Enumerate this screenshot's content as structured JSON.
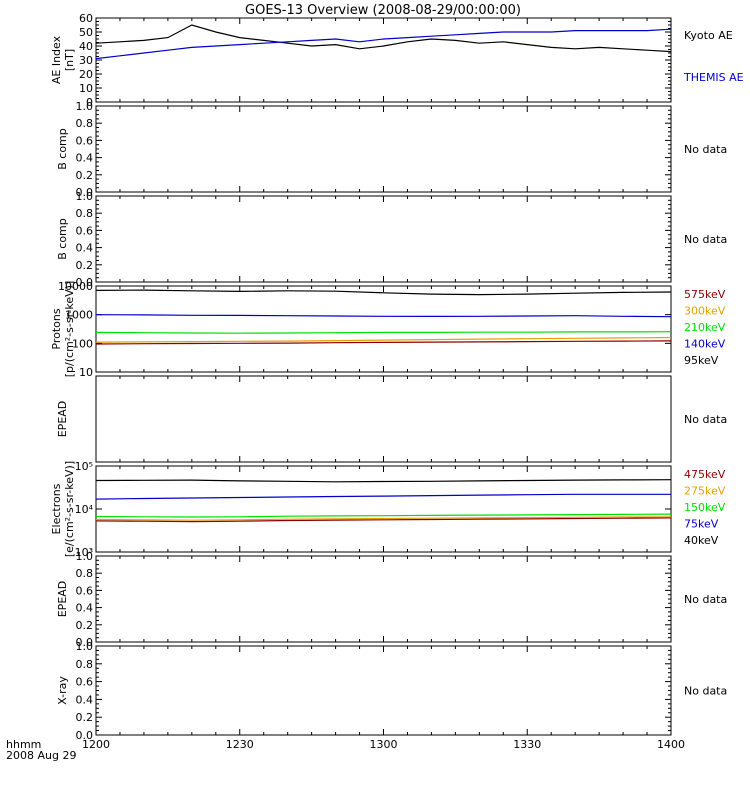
{
  "title": "GOES-13 Overview (2008-08-29/00:00:00)",
  "time_axis": {
    "corner_label_1": "hhmm",
    "corner_label_2": "2008 Aug 29",
    "ticks": [
      "1200",
      "1230",
      "1300",
      "1330",
      "1400"
    ]
  },
  "colors": {
    "black": "#000000",
    "blue": "#0000cc",
    "green": "#00e000",
    "orange": "#e8a000",
    "darkred": "#8b0000"
  },
  "chart_data": [
    {
      "type": "line",
      "ylabel": [
        "AE Index",
        "[nT]"
      ],
      "yscale": "linear",
      "ylim": [
        0,
        60
      ],
      "yticks": [
        "0",
        "10",
        "20",
        "30",
        "40",
        "50",
        "60"
      ],
      "xlim": [
        "12:00",
        "14:00"
      ],
      "x": [
        "12:00",
        "12:05",
        "12:10",
        "12:15",
        "12:20",
        "12:25",
        "12:30",
        "12:35",
        "12:40",
        "12:45",
        "12:50",
        "12:55",
        "13:00",
        "13:05",
        "13:10",
        "13:15",
        "13:20",
        "13:25",
        "13:30",
        "13:35",
        "13:40",
        "13:45",
        "13:50",
        "13:55",
        "14:00"
      ],
      "series": [
        {
          "name": "Kyoto AE",
          "color": "#000000",
          "values": [
            42,
            43,
            44,
            46,
            55,
            50,
            46,
            44,
            42,
            40,
            41,
            38,
            40,
            43,
            45,
            44,
            42,
            43,
            41,
            39,
            38,
            39,
            38,
            37,
            36
          ]
        },
        {
          "name": "THEMIS AE",
          "color": "#0000cc",
          "values": [
            31,
            33,
            35,
            37,
            39,
            40,
            41,
            42,
            43,
            44,
            45,
            43,
            45,
            46,
            47,
            48,
            49,
            50,
            50,
            50,
            51,
            51,
            51,
            51,
            52
          ]
        }
      ],
      "legend": [
        "Kyoto AE",
        "THEMIS AE"
      ]
    },
    {
      "type": "line",
      "ylabel": [
        "B comp"
      ],
      "yscale": "linear",
      "ylim": [
        0,
        1
      ],
      "yticks": [
        "0.0",
        "0.2",
        "0.4",
        "0.6",
        "0.8",
        "1.0"
      ],
      "series": [],
      "legend": [
        "No data"
      ]
    },
    {
      "type": "line",
      "ylabel": [
        "B comp"
      ],
      "yscale": "linear",
      "ylim": [
        0,
        1
      ],
      "yticks": [
        "0.0",
        "0.2",
        "0.4",
        "0.6",
        "0.8",
        "1.0"
      ],
      "series": [],
      "legend": [
        "No data"
      ]
    },
    {
      "type": "line",
      "ylabel": [
        "Protons",
        "[p/(cm²-s-sr-keV)]"
      ],
      "yscale": "log",
      "ylim": [
        10,
        10000
      ],
      "yticks": [
        "10",
        "100",
        "1000",
        "10000"
      ],
      "x": [
        "12:00",
        "12:10",
        "12:20",
        "12:30",
        "12:40",
        "12:50",
        "13:00",
        "13:10",
        "13:20",
        "13:30",
        "13:40",
        "13:50",
        "14:00"
      ],
      "series": [
        {
          "name": "575keV",
          "color": "#8b0000",
          "values": [
            95,
            97,
            99,
            100,
            102,
            105,
            108,
            110,
            112,
            115,
            118,
            120,
            122
          ]
        },
        {
          "name": "300keV",
          "color": "#e8a000",
          "values": [
            110,
            112,
            115,
            118,
            120,
            125,
            130,
            135,
            140,
            145,
            150,
            155,
            160
          ]
        },
        {
          "name": "210keV",
          "color": "#00e000",
          "values": [
            240,
            235,
            230,
            225,
            230,
            235,
            240,
            240,
            245,
            245,
            250,
            250,
            255
          ]
        },
        {
          "name": "140keV",
          "color": "#0000cc",
          "values": [
            1000,
            980,
            950,
            940,
            920,
            900,
            880,
            870,
            880,
            900,
            920,
            880,
            850
          ]
        },
        {
          "name": "95keV",
          "color": "#000000",
          "values": [
            7000,
            7200,
            6800,
            6500,
            6800,
            6600,
            5800,
            5200,
            5000,
            5200,
            5600,
            6000,
            6200
          ]
        }
      ],
      "legend": [
        "575keV",
        "300keV",
        "210keV",
        "140keV",
        "95keV"
      ]
    },
    {
      "type": "line",
      "ylabel": [
        "EPEAD"
      ],
      "yscale": "linear",
      "ylim": [
        0,
        1
      ],
      "yticks": [],
      "series": [],
      "legend": [
        "No data"
      ]
    },
    {
      "type": "line",
      "ylabel": [
        "Electrons",
        "[e/(cm²-s-sr-keV)]"
      ],
      "yscale": "log",
      "ylim": [
        1000,
        100000
      ],
      "yticks": [
        "10³",
        "10⁴",
        "10⁵"
      ],
      "x": [
        "12:00",
        "12:10",
        "12:20",
        "12:30",
        "12:40",
        "12:50",
        "13:00",
        "13:10",
        "13:20",
        "13:30",
        "13:40",
        "13:50",
        "14:00"
      ],
      "series": [
        {
          "name": "475keV",
          "color": "#8b0000",
          "values": [
            5300,
            5200,
            5100,
            5200,
            5400,
            5500,
            5600,
            5700,
            5800,
            5900,
            6000,
            6100,
            6200
          ]
        },
        {
          "name": "275keV",
          "color": "#e8a000",
          "values": [
            5700,
            5600,
            5500,
            5600,
            5800,
            5900,
            6000,
            6100,
            6200,
            6300,
            6400,
            6500,
            6600
          ]
        },
        {
          "name": "150keV",
          "color": "#00e000",
          "values": [
            6700,
            6600,
            6500,
            6600,
            6800,
            6900,
            7000,
            7100,
            7200,
            7300,
            7400,
            7500,
            7600
          ]
        },
        {
          "name": "75keV",
          "color": "#0000cc",
          "values": [
            17000,
            17500,
            18000,
            18500,
            19000,
            19500,
            20000,
            20500,
            21000,
            21500,
            22000,
            22000,
            22000
          ]
        },
        {
          "name": "40keV",
          "color": "#000000",
          "values": [
            46000,
            46500,
            47000,
            45000,
            44000,
            43000,
            43500,
            44000,
            45000,
            46000,
            47000,
            47500,
            48000
          ]
        }
      ],
      "legend": [
        "475keV",
        "275keV",
        "150keV",
        "75keV",
        "40keV"
      ]
    },
    {
      "type": "line",
      "ylabel": [
        "EPEAD"
      ],
      "yscale": "linear",
      "ylim": [
        0,
        1
      ],
      "yticks": [
        "0.0",
        "0.2",
        "0.4",
        "0.6",
        "0.8",
        "1.0"
      ],
      "series": [],
      "legend": [
        "No data"
      ]
    },
    {
      "type": "line",
      "ylabel": [
        "X-ray"
      ],
      "yscale": "linear",
      "ylim": [
        0,
        1
      ],
      "yticks": [
        "0.0",
        "0.2",
        "0.4",
        "0.6",
        "0.8",
        "1.0"
      ],
      "series": [],
      "legend": [
        "No data"
      ]
    }
  ]
}
